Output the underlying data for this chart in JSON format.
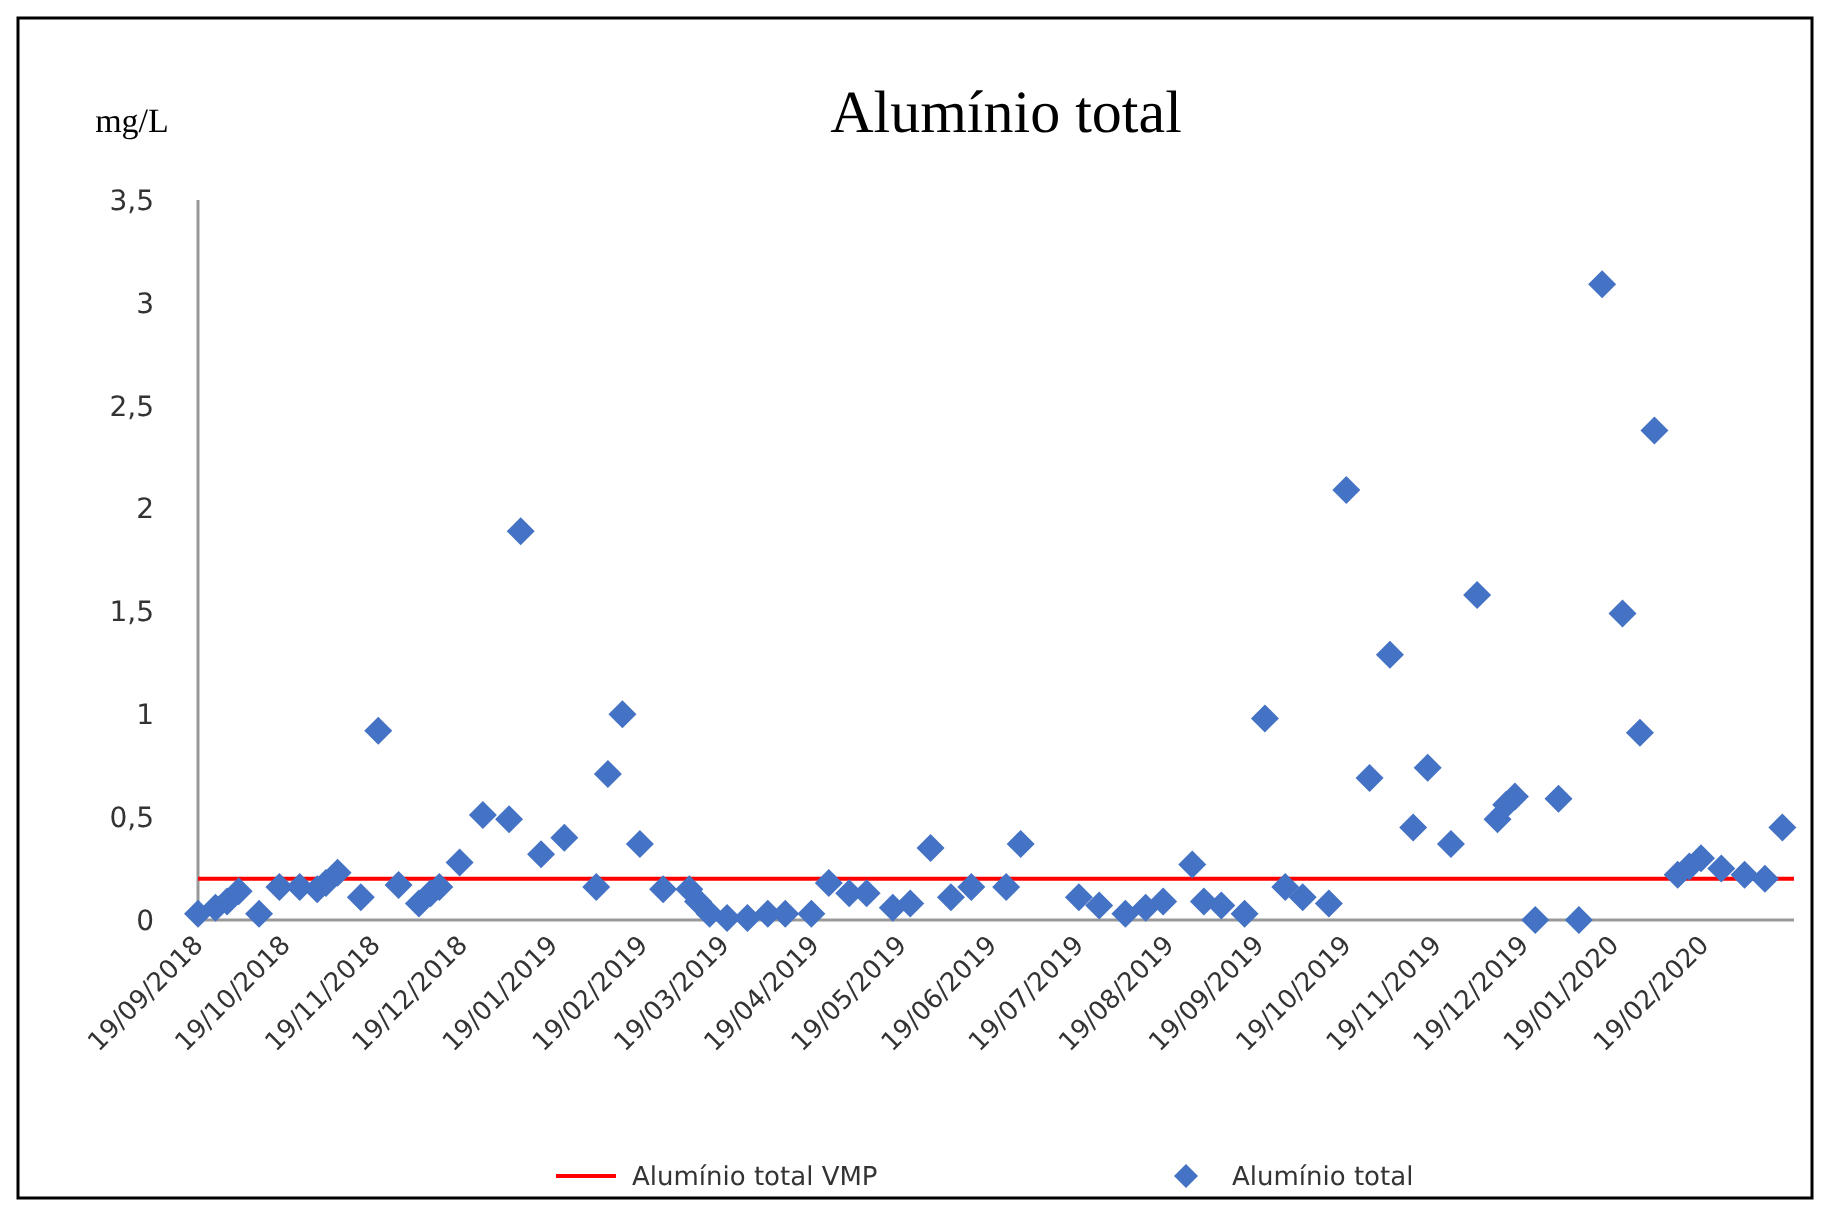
{
  "chart_data": {
    "type": "scatter",
    "title": "Alumínio total",
    "ylabel": "mg/L",
    "xlim": [
      "2018-09-19",
      "2020-03-21"
    ],
    "xticks": [
      {
        "value": "2018-09-19",
        "label": "19/09/2018"
      },
      {
        "value": "2018-10-19",
        "label": "19/10/2018"
      },
      {
        "value": "2018-11-19",
        "label": "19/11/2018"
      },
      {
        "value": "2018-12-19",
        "label": "19/12/2018"
      },
      {
        "value": "2019-01-19",
        "label": "19/01/2019"
      },
      {
        "value": "2019-02-19",
        "label": "19/02/2019"
      },
      {
        "value": "2019-03-19",
        "label": "19/03/2019"
      },
      {
        "value": "2019-04-19",
        "label": "19/04/2019"
      },
      {
        "value": "2019-05-19",
        "label": "19/05/2019"
      },
      {
        "value": "2019-06-19",
        "label": "19/06/2019"
      },
      {
        "value": "2019-07-19",
        "label": "19/07/2019"
      },
      {
        "value": "2019-08-19",
        "label": "19/08/2019"
      },
      {
        "value": "2019-09-19",
        "label": "19/09/2019"
      },
      {
        "value": "2019-10-19",
        "label": "19/10/2019"
      },
      {
        "value": "2019-11-19",
        "label": "19/11/2019"
      },
      {
        "value": "2019-12-19",
        "label": "19/12/2019"
      },
      {
        "value": "2020-01-19",
        "label": "19/01/2020"
      },
      {
        "value": "2020-02-19",
        "label": "19/02/2020"
      }
    ],
    "ylim": [
      0,
      3.5
    ],
    "yticks": [
      0,
      {
        "value": 0.5,
        "label": "0,5"
      },
      1,
      {
        "value": 1.5,
        "label": "1,5"
      },
      2,
      {
        "value": 2.5,
        "label": "2,5"
      },
      3,
      {
        "value": 3.5,
        "label": "3,5"
      }
    ],
    "grid": false,
    "legend": "bottom",
    "series": [
      {
        "name": "Alumínio total VMP",
        "type": "line",
        "color": "#ff0000",
        "x": [
          "2018-09-19",
          "2020-03-21"
        ],
        "values": [
          0.2,
          0.2
        ]
      },
      {
        "name": "Alumínio total",
        "marker": "diamond",
        "color": "#4472c4",
        "x": [
          "2018-09-19",
          "2018-09-25",
          "2018-09-29",
          "2018-10-03",
          "2018-10-10",
          "2018-10-17",
          "2018-10-24",
          "2018-10-30",
          "2018-11-02",
          "2018-11-06",
          "2018-11-14",
          "2018-11-20",
          "2018-11-27",
          "2018-12-04",
          "2018-12-08",
          "2018-12-11",
          "2018-12-18",
          "2018-12-26",
          "2019-01-04",
          "2019-01-08",
          "2019-01-15",
          "2019-01-23",
          "2019-02-03",
          "2019-02-07",
          "2019-02-12",
          "2019-02-18",
          "2019-02-26",
          "2019-03-07",
          "2019-03-10",
          "2019-03-14",
          "2019-03-20",
          "2019-03-27",
          "2019-04-03",
          "2019-04-09",
          "2019-04-18",
          "2019-04-24",
          "2019-05-01",
          "2019-05-07",
          "2019-05-16",
          "2019-05-22",
          "2019-05-29",
          "2019-06-05",
          "2019-06-12",
          "2019-06-24",
          "2019-06-29",
          "2019-07-19",
          "2019-07-26",
          "2019-08-04",
          "2019-08-11",
          "2019-08-17",
          "2019-08-27",
          "2019-08-31",
          "2019-09-06",
          "2019-09-14",
          "2019-09-21",
          "2019-09-28",
          "2019-10-04",
          "2019-10-13",
          "2019-10-19",
          "2019-10-27",
          "2019-11-03",
          "2019-11-11",
          "2019-11-16",
          "2019-11-24",
          "2019-12-03",
          "2019-12-10",
          "2019-12-13",
          "2019-12-16",
          "2019-12-23",
          "2019-12-31",
          "2020-01-07",
          "2020-01-15",
          "2020-01-22",
          "2020-01-28",
          "2020-02-02",
          "2020-02-10",
          "2020-02-14",
          "2020-02-18",
          "2020-02-25",
          "2020-03-04",
          "2020-03-11",
          "2020-03-17"
        ],
        "values": [
          0.03,
          0.06,
          0.09,
          0.14,
          0.03,
          0.16,
          0.16,
          0.15,
          0.18,
          0.23,
          0.11,
          0.92,
          0.17,
          0.08,
          0.13,
          0.16,
          0.28,
          0.51,
          0.49,
          1.89,
          0.32,
          0.4,
          0.16,
          0.71,
          1.0,
          0.37,
          0.15,
          0.15,
          0.09,
          0.03,
          0.01,
          0.01,
          0.03,
          0.03,
          0.03,
          0.18,
          0.13,
          0.13,
          0.06,
          0.08,
          0.35,
          0.11,
          0.16,
          0.16,
          0.37,
          0.11,
          0.07,
          0.03,
          0.06,
          0.09,
          0.27,
          0.09,
          0.07,
          0.03,
          0.98,
          0.16,
          0.11,
          0.08,
          2.09,
          0.69,
          1.29,
          0.45,
          0.74,
          0.37,
          1.58,
          0.49,
          0.56,
          0.6,
          0,
          0.59,
          0,
          3.09,
          1.49,
          0.91,
          2.38,
          0.22,
          0.26,
          0.3,
          0.25,
          0.22,
          0.2,
          0.45
        ]
      }
    ]
  }
}
